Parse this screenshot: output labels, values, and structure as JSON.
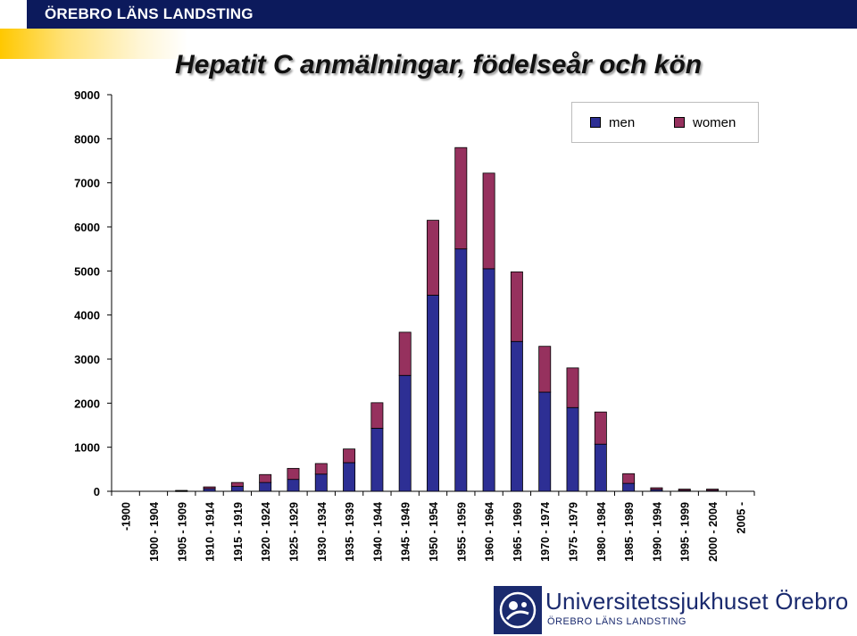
{
  "header": {
    "title": "ÖREBRO LÄNS LANDSTING"
  },
  "colors": {
    "men": "#2d2f94",
    "women": "#96315e",
    "header": "#0c1a5c",
    "accent": "#ffc800"
  },
  "logo": {
    "name": "Universitetssjukhuset Örebro",
    "subtitle": "ÖREBRO LÄNS LANDSTING",
    "icon": "seal-icon"
  },
  "chart_data": {
    "type": "bar",
    "stacked": true,
    "title": "Hepatit C anmälningar, födelseår och kön",
    "ylim": [
      0,
      9000
    ],
    "yticks": [
      0,
      1000,
      2000,
      3000,
      4000,
      5000,
      6000,
      7000,
      8000,
      9000
    ],
    "grid": false,
    "legend_position": "top-right",
    "categories": [
      "-1900",
      "1900 - 1904",
      "1905 - 1909",
      "1910 - 1914",
      "1915 - 1919",
      "1920 - 1924",
      "1925 - 1929",
      "1930 - 1934",
      "1935 - 1939",
      "1940 - 1944",
      "1945 - 1949",
      "1950 - 1954",
      "1955 - 1959",
      "1960 - 1964",
      "1965 - 1969",
      "1970 - 1974",
      "1975 - 1979",
      "1980 - 1984",
      "1985 - 1989",
      "1990 - 1994",
      "1995 - 1999",
      "2000 - 2004",
      "2005 -"
    ],
    "series": [
      {
        "name": "men",
        "values": [
          0,
          0,
          10,
          60,
          110,
          200,
          270,
          390,
          650,
          1430,
          2630,
          4450,
          5500,
          5050,
          3400,
          2250,
          1900,
          1070,
          180,
          40,
          20,
          20,
          0
        ]
      },
      {
        "name": "women",
        "values": [
          0,
          0,
          10,
          40,
          90,
          180,
          250,
          240,
          310,
          580,
          980,
          1700,
          2300,
          2170,
          1580,
          1040,
          900,
          730,
          220,
          40,
          30,
          30,
          0
        ]
      }
    ]
  }
}
